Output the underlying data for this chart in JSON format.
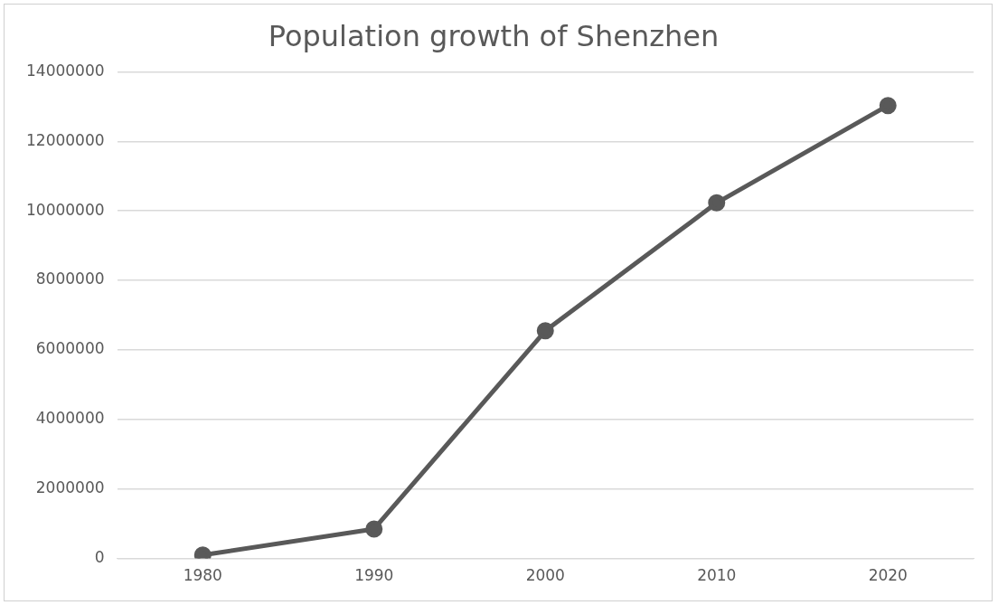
{
  "chart_data": {
    "type": "line",
    "title": "Population growth of Shenzhen",
    "categories": [
      "1980",
      "1990",
      "2000",
      "2010",
      "2020"
    ],
    "series": [
      {
        "color": "#595959",
        "values": [
          100000,
          850000,
          6550000,
          10230000,
          13030000
        ]
      }
    ],
    "ylim": [
      0,
      14000000
    ],
    "yticks": [
      0,
      2000000,
      4000000,
      6000000,
      8000000,
      10000000,
      12000000,
      14000000
    ],
    "grid": "y",
    "legend": false,
    "marker": "circle",
    "line_style": "solid"
  }
}
